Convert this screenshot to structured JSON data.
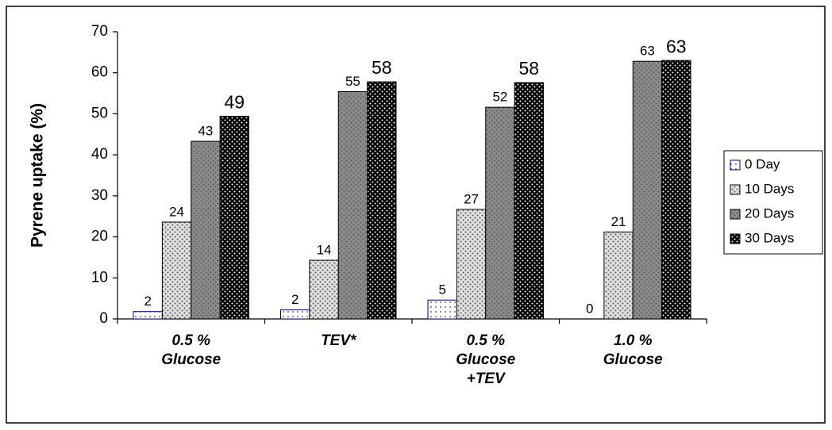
{
  "chart_data": {
    "type": "bar",
    "y_label": "Pyrene uptake (%)",
    "categories": [
      "0.5 %\nGlucose",
      "TEV*",
      "0.5 %\nGlucose\n+TEV",
      "1.0 %\nGlucose"
    ],
    "series": [
      {
        "name": "0 Day",
        "color": "#ffffff",
        "border": "#000080",
        "values": [
          1.8,
          2.2,
          4.6,
          0
        ],
        "value_labels": [
          "2",
          "2",
          "5",
          "0"
        ]
      },
      {
        "name": "10 Days",
        "color": "#e0e0e0",
        "values": [
          23.6,
          14.3,
          26.7,
          21.2
        ],
        "value_labels": [
          "24",
          "14",
          "27",
          "21"
        ]
      },
      {
        "name": "20 Days",
        "color": "#8c8c8c",
        "values": [
          43.3,
          55.4,
          51.6,
          62.8
        ],
        "value_labels": [
          "43",
          "55",
          "52",
          "63"
        ]
      },
      {
        "name": "30 Days",
        "color": "#000000",
        "values": [
          49.4,
          57.8,
          57.6,
          63.0
        ],
        "value_labels": [
          "49",
          "58",
          "58",
          "63"
        ]
      }
    ],
    "ylim": [
      0,
      70
    ],
    "yticks": [
      0,
      10,
      20,
      30,
      40,
      50,
      60,
      70
    ],
    "legend": "right"
  }
}
